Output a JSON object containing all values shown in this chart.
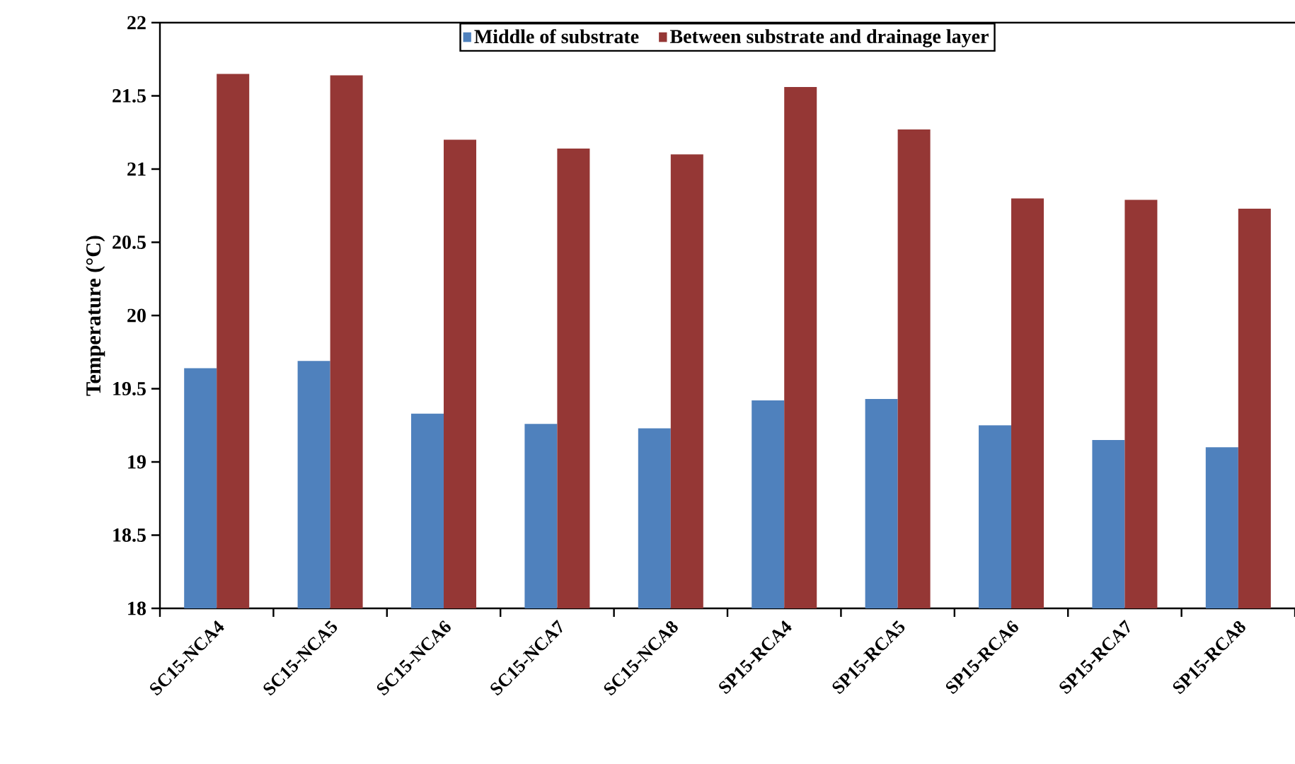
{
  "chart_data": {
    "type": "bar",
    "ylabel": "Temperature (°C)",
    "categories": [
      "SC15-NCA4",
      "SC15-NCA5",
      "SC15-NCA6",
      "SC15-NCA7",
      "SC15-NCA8",
      "SP15-RCA4",
      "SP15-RCA5",
      "SP15-RCA6",
      "SP15-RCA7",
      "SP15-RCA8"
    ],
    "series": [
      {
        "name": "Middle of substrate",
        "color": "#4f81bd",
        "values": [
          19.64,
          19.69,
          19.33,
          19.26,
          19.23,
          19.42,
          19.43,
          19.25,
          19.15,
          19.1
        ]
      },
      {
        "name": "Between substrate and drainage layer",
        "color": "#953735",
        "values": [
          21.65,
          21.64,
          21.2,
          21.14,
          21.1,
          21.56,
          21.27,
          20.8,
          20.79,
          20.73
        ]
      }
    ],
    "ylim": [
      18,
      22
    ],
    "yticks": [
      18,
      18.5,
      19,
      19.5,
      20,
      20.5,
      21,
      21.5,
      22
    ],
    "legend": "top"
  }
}
